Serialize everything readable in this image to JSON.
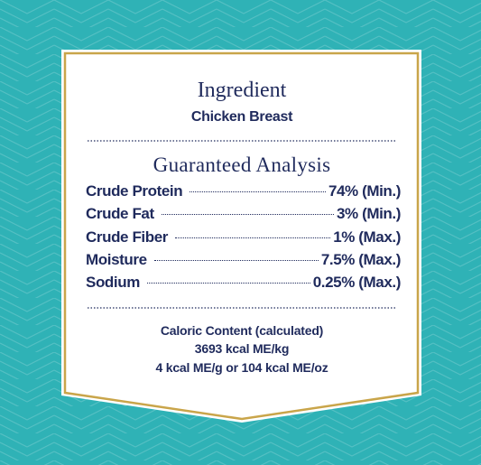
{
  "heading": "Ingredient",
  "ingredient": "Chicken Breast",
  "analysis": {
    "title": "Guaranteed Analysis",
    "rows": [
      [
        "Crude Protein",
        "74% (Min.)"
      ],
      [
        "Crude Fat",
        "3% (Min.)"
      ],
      [
        "Crude Fiber",
        "1% (Max.)"
      ],
      [
        "Moisture",
        "7.5% (Max.)"
      ],
      [
        "Sodium",
        "0.25% (Max.)"
      ]
    ]
  },
  "caloric": [
    "Caloric Content (calculated)",
    "3693 kcal ME/kg",
    "4 kcal ME/g or 104 kcal ME/oz"
  ]
}
